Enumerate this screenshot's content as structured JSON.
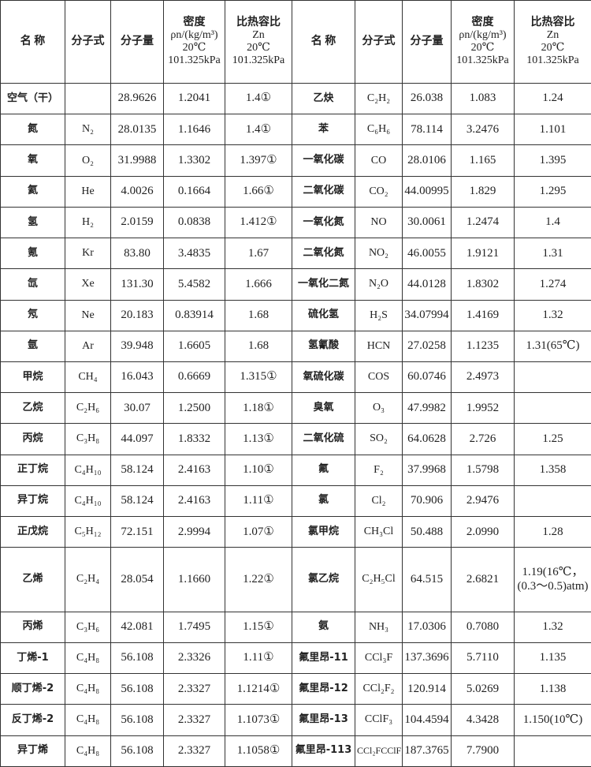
{
  "table": {
    "header": [
      "名 称",
      "分子式",
      "分子量",
      [
        "密度",
        "ρn/(kg/m³)",
        "20℃",
        "101.325kPa"
      ],
      [
        "比热容比",
        "Zn",
        "20℃",
        "101.325kPa"
      ],
      "名 称",
      "分子式",
      "分子量",
      [
        "密度",
        "ρn/(kg/m³)",
        "20℃",
        "101.325kPa"
      ],
      [
        "比热容比",
        "Zn",
        "20℃",
        "101.325kPa"
      ]
    ],
    "rows": [
      [
        "空气（干）",
        null,
        "28.9626",
        "1.2041",
        "1.4①",
        "乙炔",
        "C₂H₂",
        "26.038",
        "1.083",
        "1.24"
      ],
      [
        "氮",
        "N₂",
        "28.0135",
        "1.1646",
        "1.4①",
        "苯",
        "C₆H₆",
        "78.114",
        "3.2476",
        "1.101"
      ],
      [
        "氧",
        "O₂",
        "31.9988",
        "1.3302",
        "1.397①",
        "一氧化碳",
        "CO",
        "28.0106",
        "1.165",
        "1.395"
      ],
      [
        "氦",
        "He",
        "4.0026",
        "0.1664",
        "1.66①",
        "二氧化碳",
        "CO₂",
        "44.00995",
        "1.829",
        "1.295"
      ],
      [
        "氢",
        "H₂",
        "2.0159",
        "0.0838",
        "1.412①",
        "一氧化氮",
        "NO",
        "30.0061",
        "1.2474",
        "1.4"
      ],
      [
        "氪",
        "Kr",
        "83.80",
        "3.4835",
        "1.67",
        "二氧化氮",
        "NO₂",
        "46.0055",
        "1.9121",
        "1.31"
      ],
      [
        "氙",
        "Xe",
        "131.30",
        "5.4582",
        "1.666",
        "一氧化二氮",
        "N₂O",
        "44.0128",
        "1.8302",
        "1.274"
      ],
      [
        "氖",
        "Ne",
        "20.183",
        "0.83914",
        "1.68",
        "硫化氢",
        "H₂S",
        "34.07994",
        "1.4169",
        "1.32"
      ],
      [
        "氩",
        "Ar",
        "39.948",
        "1.6605",
        "1.68",
        "氢氰酸",
        "HCN",
        "27.0258",
        "1.1235",
        "1.31(65℃)"
      ],
      [
        "甲烷",
        "CH₄",
        "16.043",
        "0.6669",
        "1.315①",
        "氧硫化碳",
        "COS",
        "60.0746",
        "2.4973",
        null
      ],
      [
        "乙烷",
        "C₂H₆",
        "30.07",
        "1.2500",
        "1.18①",
        "臭氧",
        "O₃",
        "47.9982",
        "1.9952",
        null
      ],
      [
        "丙烷",
        "C₃H₈",
        "44.097",
        "1.8332",
        "1.13①",
        "二氧化硫",
        "SO₂",
        "64.0628",
        "2.726",
        "1.25"
      ],
      [
        "正丁烷",
        "C₄H₁₀",
        "58.124",
        "2.4163",
        "1.10①",
        "氟",
        "F₂",
        "37.9968",
        "1.5798",
        "1.358"
      ],
      [
        "异丁烷",
        "C₄H₁₀",
        "58.124",
        "2.4163",
        "1.11①",
        "氯",
        "Cl₂",
        "70.906",
        "2.9476",
        null
      ],
      [
        "正戊烷",
        "C₅H₁₂",
        "72.151",
        "2.9994",
        "1.07①",
        "氯甲烷",
        "CH₃Cl",
        "50.488",
        "2.0990",
        "1.28"
      ],
      [
        "乙烯",
        "C₂H₄",
        "28.054",
        "1.1660",
        "1.22①",
        "氯乙烷",
        "C₂H₅Cl",
        "64.515",
        "2.6821",
        "1.19(16℃，(0.3～0.5)atm)"
      ],
      [
        "丙烯",
        "C₃H₆",
        "42.081",
        "1.7495",
        "1.15①",
        "氨",
        "NH₃",
        "17.0306",
        "0.7080",
        "1.32"
      ],
      [
        "丁烯-1",
        "C₄H₈",
        "56.108",
        "2.3326",
        "1.11①",
        "氟里昂-11",
        "CCl₃F",
        "137.3696",
        "5.7110",
        "1.135"
      ],
      [
        "顺丁烯-2",
        "C₄H₈",
        "56.108",
        "2.3327",
        "1.1214①",
        "氟里昂-12",
        "CCl₂F₂",
        "120.914",
        "5.0269",
        "1.138"
      ],
      [
        "反丁烯-2",
        "C₄H₈",
        "56.108",
        "2.3327",
        "1.1073①",
        "氟里昂-13",
        "CClF₃",
        "104.4594",
        "4.3428",
        "1.150(10℃)"
      ],
      [
        "异丁烯",
        "C₄H₈",
        "56.108",
        "2.3327",
        "1.1058①",
        "氟里昂-113",
        "CCl₂FCClF₂",
        "187.3765",
        "7.7900",
        null
      ]
    ]
  }
}
